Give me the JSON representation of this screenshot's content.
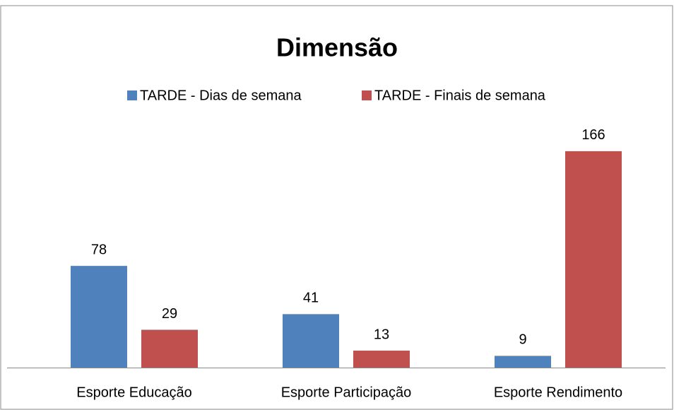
{
  "chart_data": {
    "type": "bar",
    "title": "Dimensão",
    "categories": [
      "Esporte Educação",
      "Esporte Participação",
      "Esporte Rendimento"
    ],
    "series": [
      {
        "name": "TARDE - Dias de semana",
        "color": "#4f81bd",
        "values": [
          78,
          41,
          9
        ]
      },
      {
        "name": "TARDE - Finais de semana",
        "color": "#c0504d",
        "values": [
          29,
          13,
          166
        ]
      }
    ],
    "ylim": [
      0,
      180
    ],
    "legend": "top"
  }
}
